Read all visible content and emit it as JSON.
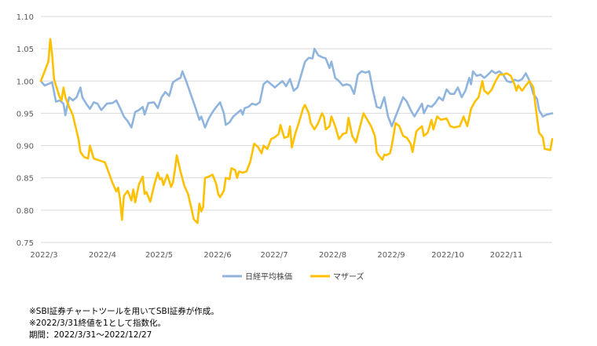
{
  "chart_data": {
    "type": "line",
    "title": "",
    "xlabel": "",
    "ylabel": "",
    "ylim": [
      0.75,
      1.1
    ],
    "yticks": [
      "1.10",
      "1.05",
      "1.00",
      "0.95",
      "0.90",
      "0.85",
      "0.80",
      "0.75"
    ],
    "xticks": [
      "2022/3",
      "2022/4",
      "2022/5",
      "2022/6",
      "2022/7",
      "2022/8",
      "2022/9",
      "2022/10",
      "2022/11"
    ],
    "x_range_days": [
      0,
      271
    ],
    "xtick_days": [
      0,
      31,
      61,
      92,
      122,
      153,
      184,
      214,
      245
    ],
    "grid": "horizontal",
    "legend_position": "bottom",
    "series": [
      {
        "name": "日経平均株価",
        "color": "#8fb4de",
        "points": [
          [
            0,
            1.0
          ],
          [
            2,
            0.993
          ],
          [
            6,
            0.998
          ],
          [
            8,
            0.968
          ],
          [
            10,
            0.97
          ],
          [
            12,
            0.965
          ],
          [
            13,
            0.947
          ],
          [
            15,
            0.975
          ],
          [
            17,
            0.97
          ],
          [
            19,
            0.975
          ],
          [
            21,
            0.99
          ],
          [
            22,
            0.975
          ],
          [
            24,
            0.965
          ],
          [
            26,
            0.957
          ],
          [
            28,
            0.967
          ],
          [
            30,
            0.965
          ],
          [
            32,
            0.955
          ],
          [
            35,
            0.965
          ],
          [
            38,
            0.966
          ],
          [
            40,
            0.97
          ],
          [
            42,
            0.958
          ],
          [
            44,
            0.945
          ],
          [
            46,
            0.938
          ],
          [
            48,
            0.928
          ],
          [
            50,
            0.952
          ],
          [
            52,
            0.955
          ],
          [
            54,
            0.96
          ],
          [
            55,
            0.948
          ],
          [
            57,
            0.966
          ],
          [
            60,
            0.967
          ],
          [
            62,
            0.958
          ],
          [
            64,
            0.975
          ],
          [
            66,
            0.983
          ],
          [
            68,
            0.977
          ],
          [
            70,
            0.998
          ],
          [
            72,
            1.002
          ],
          [
            74,
            1.005
          ],
          [
            75,
            1.015
          ],
          [
            77,
            1.0
          ],
          [
            80,
            0.975
          ],
          [
            82,
            0.958
          ],
          [
            84,
            0.94
          ],
          [
            85,
            0.945
          ],
          [
            87,
            0.928
          ],
          [
            89,
            0.942
          ],
          [
            91,
            0.952
          ],
          [
            93,
            0.96
          ],
          [
            95,
            0.967
          ],
          [
            97,
            0.95
          ],
          [
            98,
            0.932
          ],
          [
            100,
            0.936
          ],
          [
            102,
            0.945
          ],
          [
            104,
            0.95
          ],
          [
            106,
            0.955
          ],
          [
            107,
            0.948
          ],
          [
            108,
            0.958
          ],
          [
            110,
            0.96
          ],
          [
            112,
            0.965
          ],
          [
            114,
            0.963
          ],
          [
            116,
            0.967
          ],
          [
            118,
            0.995
          ],
          [
            120,
            1.0
          ],
          [
            122,
            0.995
          ],
          [
            124,
            0.99
          ],
          [
            126,
            0.995
          ],
          [
            128,
            1.0
          ],
          [
            130,
            0.992
          ],
          [
            132,
            1.003
          ],
          [
            134,
            0.985
          ],
          [
            136,
            0.99
          ],
          [
            138,
            1.01
          ],
          [
            140,
            1.03
          ],
          [
            142,
            1.036
          ],
          [
            144,
            1.035
          ],
          [
            145,
            1.05
          ],
          [
            147,
            1.04
          ],
          [
            149,
            1.037
          ],
          [
            151,
            1.035
          ],
          [
            153,
            1.02
          ],
          [
            154,
            1.03
          ],
          [
            156,
            1.005
          ],
          [
            158,
            1.0
          ],
          [
            160,
            0.993
          ],
          [
            162,
            0.995
          ],
          [
            164,
            0.993
          ],
          [
            166,
            0.98
          ],
          [
            168,
            1.01
          ],
          [
            170,
            1.015
          ],
          [
            172,
            1.013
          ],
          [
            174,
            1.015
          ],
          [
            176,
            0.985
          ],
          [
            178,
            0.96
          ],
          [
            180,
            0.958
          ],
          [
            182,
            0.975
          ],
          [
            184,
            0.945
          ],
          [
            186,
            0.93
          ],
          [
            188,
            0.945
          ],
          [
            190,
            0.96
          ],
          [
            192,
            0.975
          ],
          [
            194,
            0.968
          ],
          [
            196,
            0.955
          ],
          [
            198,
            0.945
          ],
          [
            200,
            0.955
          ],
          [
            202,
            0.965
          ],
          [
            203,
            0.95
          ],
          [
            205,
            0.962
          ],
          [
            207,
            0.96
          ],
          [
            209,
            0.966
          ],
          [
            211,
            0.975
          ],
          [
            213,
            0.97
          ],
          [
            215,
            0.987
          ],
          [
            217,
            0.98
          ],
          [
            219,
            0.98
          ],
          [
            221,
            0.99
          ],
          [
            223,
            0.975
          ],
          [
            225,
            0.985
          ],
          [
            227,
            1.005
          ],
          [
            228,
            0.995
          ],
          [
            229,
            1.015
          ],
          [
            231,
            1.008
          ],
          [
            233,
            1.01
          ],
          [
            235,
            1.005
          ],
          [
            237,
            1.01
          ],
          [
            239,
            1.016
          ],
          [
            241,
            1.012
          ],
          [
            243,
            1.015
          ],
          [
            245,
            1.01
          ],
          [
            247,
            1.0
          ],
          [
            249,
            0.998
          ],
          [
            251,
            1.002
          ],
          [
            253,
            1.0
          ],
          [
            255,
            1.003
          ],
          [
            257,
            1.012
          ],
          [
            259,
            1.0
          ],
          [
            261,
            0.98
          ],
          [
            263,
            0.972
          ],
          [
            264,
            0.955
          ],
          [
            266,
            0.945
          ],
          [
            268,
            0.948
          ],
          [
            271,
            0.95
          ]
        ]
      },
      {
        "name": "マザーズ",
        "color": "#ffc000",
        "points": [
          [
            0,
            1.0
          ],
          [
            2,
            1.015
          ],
          [
            4,
            1.03
          ],
          [
            5,
            1.065
          ],
          [
            6,
            1.04
          ],
          [
            7,
            1.003
          ],
          [
            8,
            0.993
          ],
          [
            10,
            0.975
          ],
          [
            11,
            0.97
          ],
          [
            12,
            0.99
          ],
          [
            13,
            0.975
          ],
          [
            15,
            0.96
          ],
          [
            17,
            0.947
          ],
          [
            19,
            0.922
          ],
          [
            20,
            0.91
          ],
          [
            21,
            0.89
          ],
          [
            23,
            0.882
          ],
          [
            25,
            0.88
          ],
          [
            26,
            0.9
          ],
          [
            28,
            0.88
          ],
          [
            30,
            0.878
          ],
          [
            32,
            0.876
          ],
          [
            34,
            0.874
          ],
          [
            36,
            0.858
          ],
          [
            38,
            0.842
          ],
          [
            40,
            0.829
          ],
          [
            41,
            0.835
          ],
          [
            42,
            0.816
          ],
          [
            43,
            0.785
          ],
          [
            44,
            0.822
          ],
          [
            46,
            0.83
          ],
          [
            48,
            0.815
          ],
          [
            49,
            0.832
          ],
          [
            50,
            0.812
          ],
          [
            52,
            0.84
          ],
          [
            54,
            0.852
          ],
          [
            55,
            0.825
          ],
          [
            56,
            0.828
          ],
          [
            58,
            0.813
          ],
          [
            60,
            0.838
          ],
          [
            62,
            0.858
          ],
          [
            63,
            0.848
          ],
          [
            64,
            0.85
          ],
          [
            65,
            0.839
          ],
          [
            67,
            0.855
          ],
          [
            69,
            0.836
          ],
          [
            70,
            0.843
          ],
          [
            71,
            0.862
          ],
          [
            72,
            0.885
          ],
          [
            74,
            0.86
          ],
          [
            76,
            0.838
          ],
          [
            78,
            0.825
          ],
          [
            80,
            0.8
          ],
          [
            81,
            0.786
          ],
          [
            83,
            0.78
          ],
          [
            84,
            0.81
          ],
          [
            85,
            0.798
          ],
          [
            86,
            0.805
          ],
          [
            87,
            0.85
          ],
          [
            89,
            0.852
          ],
          [
            91,
            0.855
          ],
          [
            93,
            0.84
          ],
          [
            94,
            0.825
          ],
          [
            95,
            0.82
          ],
          [
            97,
            0.83
          ],
          [
            98,
            0.85
          ],
          [
            100,
            0.848
          ],
          [
            101,
            0.865
          ],
          [
            103,
            0.862
          ],
          [
            104,
            0.85
          ],
          [
            105,
            0.86
          ],
          [
            107,
            0.858
          ],
          [
            109,
            0.86
          ],
          [
            111,
            0.875
          ],
          [
            113,
            0.903
          ],
          [
            115,
            0.898
          ],
          [
            117,
            0.888
          ],
          [
            118,
            0.9
          ],
          [
            120,
            0.895
          ],
          [
            122,
            0.91
          ],
          [
            124,
            0.913
          ],
          [
            126,
            0.918
          ],
          [
            127,
            0.932
          ],
          [
            129,
            0.912
          ],
          [
            131,
            0.914
          ],
          [
            132,
            0.93
          ],
          [
            133,
            0.897
          ],
          [
            135,
            0.92
          ],
          [
            137,
            0.938
          ],
          [
            139,
            0.958
          ],
          [
            140,
            0.963
          ],
          [
            142,
            0.95
          ],
          [
            143,
            0.935
          ],
          [
            145,
            0.925
          ],
          [
            147,
            0.935
          ],
          [
            149,
            0.95
          ],
          [
            150,
            0.945
          ],
          [
            151,
            0.925
          ],
          [
            153,
            0.93
          ],
          [
            154,
            0.945
          ],
          [
            156,
            0.93
          ],
          [
            158,
            0.91
          ],
          [
            160,
            0.918
          ],
          [
            162,
            0.92
          ],
          [
            163,
            0.943
          ],
          [
            165,
            0.915
          ],
          [
            167,
            0.905
          ],
          [
            169,
            0.928
          ],
          [
            171,
            0.95
          ],
          [
            173,
            0.94
          ],
          [
            175,
            0.93
          ],
          [
            177,
            0.915
          ],
          [
            178,
            0.89
          ],
          [
            179,
            0.885
          ],
          [
            181,
            0.878
          ],
          [
            182,
            0.886
          ],
          [
            183,
            0.885
          ],
          [
            185,
            0.888
          ],
          [
            186,
            0.9
          ],
          [
            188,
            0.935
          ],
          [
            190,
            0.93
          ],
          [
            192,
            0.915
          ],
          [
            194,
            0.912
          ],
          [
            196,
            0.903
          ],
          [
            197,
            0.89
          ],
          [
            199,
            0.922
          ],
          [
            200,
            0.925
          ],
          [
            202,
            0.93
          ],
          [
            203,
            0.915
          ],
          [
            205,
            0.92
          ],
          [
            207,
            0.94
          ],
          [
            208,
            0.925
          ],
          [
            210,
            0.945
          ],
          [
            212,
            0.94
          ],
          [
            215,
            0.942
          ],
          [
            217,
            0.93
          ],
          [
            219,
            0.928
          ],
          [
            222,
            0.93
          ],
          [
            224,
            0.945
          ],
          [
            226,
            0.93
          ],
          [
            228,
            0.957
          ],
          [
            230,
            0.968
          ],
          [
            232,
            0.975
          ],
          [
            234,
            1.0
          ],
          [
            235,
            0.985
          ],
          [
            237,
            0.98
          ],
          [
            239,
            0.987
          ],
          [
            241,
            1.0
          ],
          [
            243,
            1.01
          ],
          [
            245,
            1.01
          ],
          [
            247,
            1.012
          ],
          [
            249,
            1.008
          ],
          [
            251,
            0.995
          ],
          [
            252,
            0.985
          ],
          [
            253,
            0.993
          ],
          [
            255,
            0.985
          ],
          [
            257,
            0.993
          ],
          [
            259,
            1.0
          ],
          [
            261,
            0.99
          ],
          [
            262,
            0.965
          ],
          [
            264,
            0.92
          ],
          [
            266,
            0.913
          ],
          [
            267,
            0.895
          ],
          [
            270,
            0.893
          ],
          [
            271,
            0.91
          ]
        ]
      }
    ]
  },
  "notes": [
    "※SBI証券チャートツールを用いてSBI証券が作成。",
    "※2022/3/31終値を1として指数化。",
    "期間：2022/3/31～2022/12/27"
  ]
}
